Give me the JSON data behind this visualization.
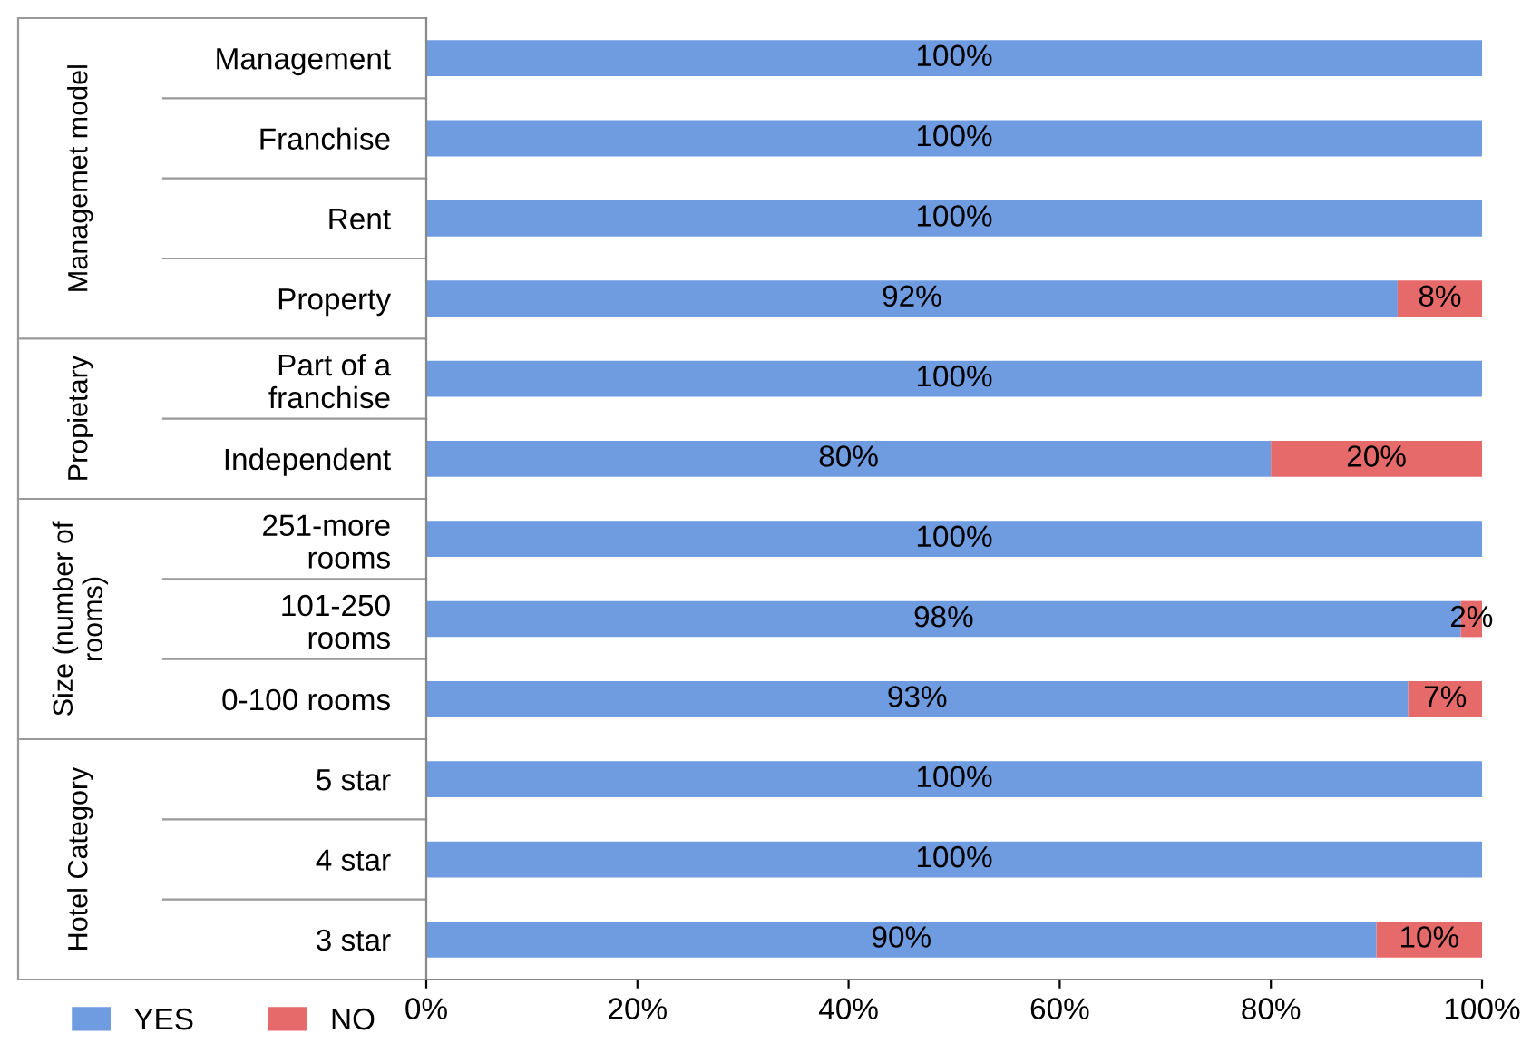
{
  "chart_data": {
    "type": "bar",
    "orientation": "horizontal",
    "stacked": true,
    "categories": [
      "Management",
      "Franchise",
      "Rent",
      "Property",
      "Part of a\nfranchise",
      "Independent",
      "251-more\nrooms",
      "101-250\nrooms",
      "0-100 rooms",
      "5 star",
      "4 star",
      "3 star"
    ],
    "series": [
      {
        "name": "YES",
        "color": "#6f9be0",
        "values": [
          100,
          100,
          100,
          92,
          100,
          80,
          100,
          98,
          93,
          100,
          100,
          90
        ],
        "value_labels": [
          "100%",
          "100%",
          "100%",
          "92%",
          "100%",
          "80%",
          "100%",
          "98%",
          "93%",
          "100%",
          "100%",
          "90%"
        ]
      },
      {
        "name": "NO",
        "color": "#e66a6a",
        "values": [
          0,
          0,
          0,
          8,
          0,
          20,
          0,
          2,
          7,
          0,
          0,
          10
        ],
        "value_labels": [
          null,
          null,
          null,
          "8%",
          null,
          "20%",
          null,
          "2%",
          "7%",
          null,
          null,
          "10%"
        ]
      }
    ],
    "annotations": [
      "Managemet model",
      "Propietary",
      "Size (number of\nrooms)",
      "Hotel Category"
    ],
    "xlim": [
      0,
      100
    ],
    "xticks": [
      {
        "value": 0,
        "label": "0%"
      },
      {
        "value": 20,
        "label": "20%"
      },
      {
        "value": 40,
        "label": "40%"
      },
      {
        "value": 60,
        "label": "60%"
      },
      {
        "value": 80,
        "label": "80%"
      },
      {
        "value": 100,
        "label": "100%"
      }
    ],
    "legend": "bottom left"
  }
}
